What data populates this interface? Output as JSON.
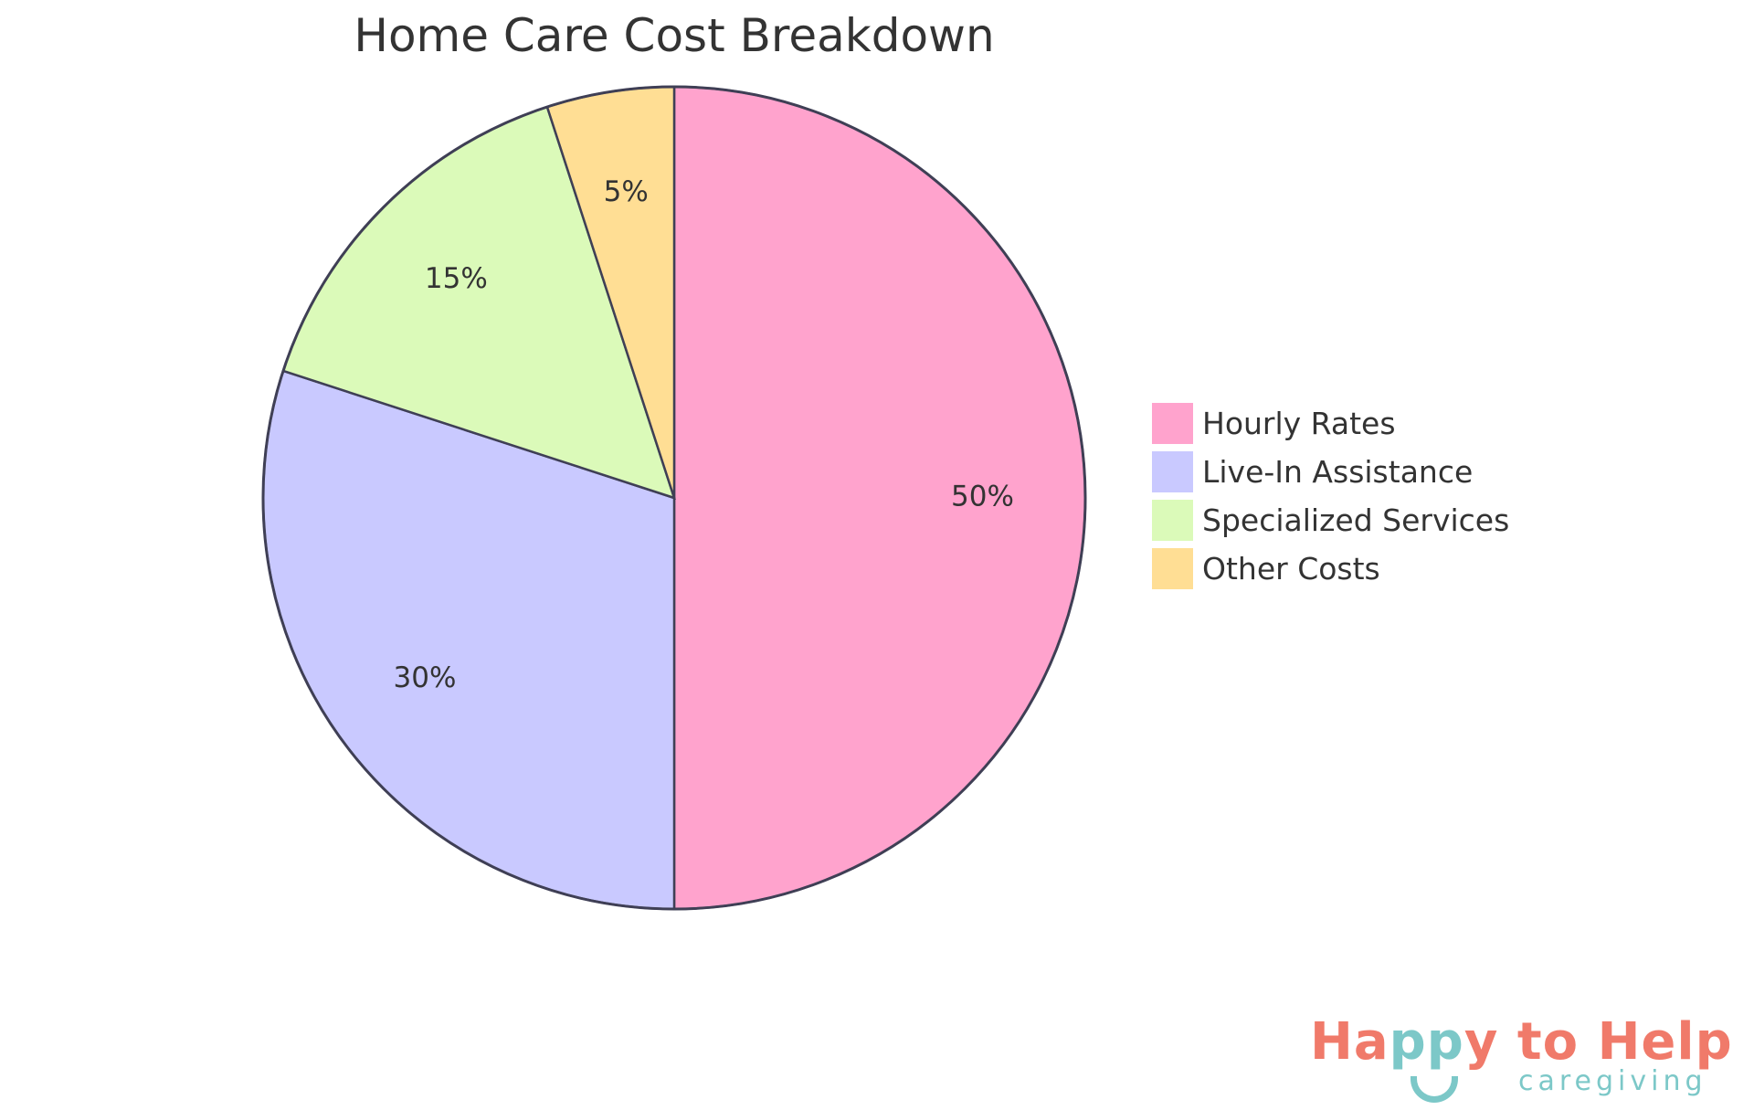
{
  "chart_data": {
    "type": "pie",
    "title": "Home Care Cost Breakdown",
    "categories": [
      "Hourly Rates",
      "Live-In Assistance",
      "Specialized Services",
      "Other Costs"
    ],
    "values": [
      50,
      30,
      15,
      5
    ],
    "labels": [
      "50%",
      "30%",
      "15%",
      "5%"
    ],
    "colors": [
      "#FFA3CD",
      "#C9C9FF",
      "#DBFAB9",
      "#FFDE94"
    ],
    "stroke_color": "#3F3F55",
    "legend_position": "right"
  },
  "logo": {
    "text_main": "Happy to Help",
    "text_sub": "caregiving",
    "colors": {
      "coral": "#F07A6A",
      "teal": "#7CC8C8"
    }
  }
}
